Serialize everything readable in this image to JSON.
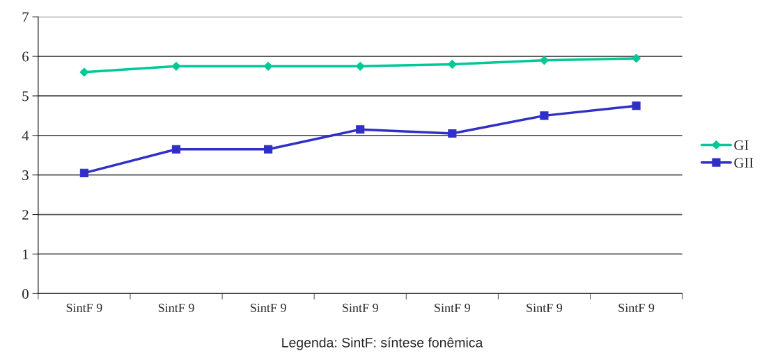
{
  "chart_data": {
    "type": "line",
    "categories": [
      "SintF 9",
      "SintF 9",
      "SintF 9",
      "SintF 9",
      "SintF 9",
      "SintF 9",
      "SintF 9"
    ],
    "series": [
      {
        "name": "GI",
        "color": "#00c896",
        "marker": "diamond",
        "values": [
          5.6,
          5.75,
          5.75,
          5.75,
          5.8,
          5.9,
          5.95
        ]
      },
      {
        "name": "GII",
        "color": "#3030c8",
        "marker": "square",
        "values": [
          3.05,
          3.65,
          3.65,
          4.15,
          4.05,
          4.5,
          4.75
        ]
      }
    ],
    "ylim": [
      0,
      7
    ],
    "yticks": [
      0,
      1,
      2,
      3,
      4,
      5,
      6,
      7
    ],
    "grid": "y",
    "legend": "right",
    "annotations": [
      "Legenda: SintF: síntese fonêmica"
    ]
  }
}
